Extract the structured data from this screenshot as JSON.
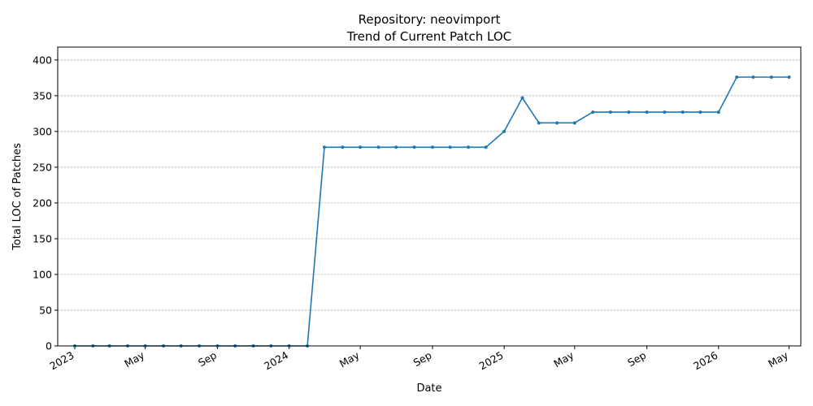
{
  "chart_data": {
    "type": "line",
    "title": "Repository: neovimport",
    "subtitle": "Trend of Current Patch LOC",
    "xlabel": "Date",
    "ylabel": "Total LOC of Patches",
    "ylim": [
      0,
      418
    ],
    "y_ticks": [
      0,
      50,
      100,
      150,
      200,
      250,
      300,
      350,
      400
    ],
    "xlim": [
      "2022-12-03",
      "2026-05-21"
    ],
    "x_ticks": [
      {
        "date": "2023-01-01",
        "label": "2023"
      },
      {
        "date": "2023-05-01",
        "label": "May"
      },
      {
        "date": "2023-09-01",
        "label": "Sep"
      },
      {
        "date": "2024-01-01",
        "label": "2024"
      },
      {
        "date": "2024-05-01",
        "label": "May"
      },
      {
        "date": "2024-09-01",
        "label": "Sep"
      },
      {
        "date": "2025-01-01",
        "label": "2025"
      },
      {
        "date": "2025-05-01",
        "label": "May"
      },
      {
        "date": "2025-09-01",
        "label": "Sep"
      },
      {
        "date": "2026-01-01",
        "label": "2026"
      },
      {
        "date": "2026-05-01",
        "label": "May"
      }
    ],
    "grid": "y",
    "color": "#1f77b4",
    "series": [
      {
        "x": [
          "2023-01-01",
          "2023-02-01",
          "2023-03-01",
          "2023-04-01",
          "2023-05-01",
          "2023-06-01",
          "2023-07-01",
          "2023-08-01",
          "2023-09-01",
          "2023-10-01",
          "2023-11-01",
          "2023-12-01",
          "2024-01-01",
          "2024-02-01",
          "2024-03-01",
          "2024-04-01",
          "2024-05-01",
          "2024-06-01",
          "2024-07-01",
          "2024-08-01",
          "2024-09-01",
          "2024-10-01",
          "2024-11-01",
          "2024-12-01",
          "2025-01-01",
          "2025-02-01",
          "2025-03-01",
          "2025-04-01",
          "2025-05-01",
          "2025-06-01",
          "2025-07-01",
          "2025-08-01",
          "2025-09-01",
          "2025-10-01",
          "2025-11-01",
          "2025-12-01",
          "2026-01-01",
          "2026-02-01",
          "2026-03-01",
          "2026-04-01",
          "2026-05-01"
        ],
        "values": [
          0,
          0,
          0,
          0,
          0,
          0,
          0,
          0,
          0,
          0,
          0,
          0,
          0,
          0,
          278,
          278,
          278,
          278,
          278,
          278,
          278,
          278,
          278,
          278,
          300,
          347,
          312,
          312,
          312,
          327,
          327,
          327,
          327,
          327,
          327,
          327,
          327,
          376,
          376,
          376,
          376
        ]
      }
    ]
  }
}
